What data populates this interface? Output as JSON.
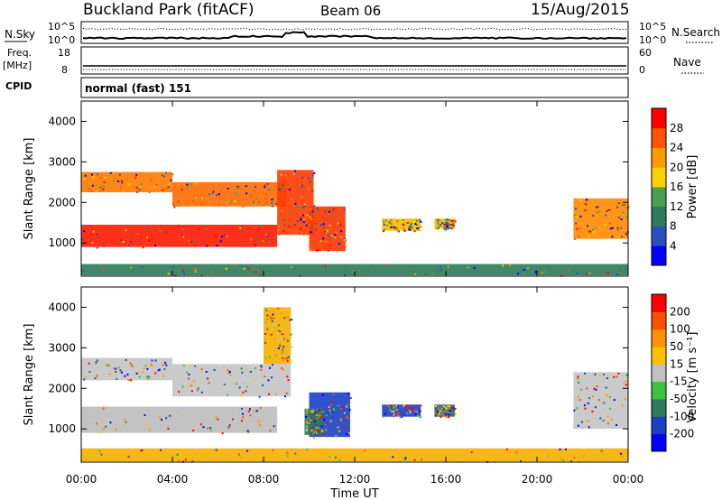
{
  "header": {
    "site": "Buckland Park (fitACF)",
    "beam": "Beam 06",
    "date": "15/Aug/2015"
  },
  "noise_panel": {
    "left_label": "N.Sky",
    "right_label": "N.Search",
    "left_ticks": [
      "10^5",
      "10^0"
    ],
    "right_ticks": [
      "10^5",
      "10^0"
    ]
  },
  "freq_panel": {
    "left_label_1": "Freq.",
    "left_label_2": "[MHz]",
    "left_label_3": "CPID",
    "right_label": "Nave",
    "left_ticks": [
      "18",
      "8"
    ],
    "right_ticks": [
      "60",
      "0"
    ],
    "cpid_text": "normal (fast) 151"
  },
  "time_axis": {
    "label": "Time UT",
    "ticks": [
      "00:00",
      "04:00",
      "08:00",
      "12:00",
      "16:00",
      "20:00",
      "00:00"
    ]
  },
  "chart_data": [
    {
      "type": "heatmap",
      "quantity": "Power",
      "ylabel": "Slant Range [km]",
      "ylim": [
        180,
        4500
      ],
      "yticks": [
        "1000",
        "2000",
        "3000",
        "4000"
      ],
      "xlim_hours": [
        0,
        24
      ],
      "colorbar_label": "Power [dB]",
      "colorbar_ticks": [
        "4",
        "8",
        "12",
        "16",
        "20",
        "24",
        "28"
      ],
      "colorbar_colors": [
        "#0000ff",
        "#2a4fc0",
        "#2e7a5a",
        "#4aa050",
        "#ffd000",
        "#ff9900",
        "#ff5500",
        "#ff0000"
      ],
      "regions": [
        {
          "t0": 0.0,
          "t1": 8.6,
          "r0": 900,
          "r1": 1450,
          "color": "#ff1a00"
        },
        {
          "t0": 0.0,
          "t1": 4.0,
          "r0": 2250,
          "r1": 2750,
          "color": "#ff7a00"
        },
        {
          "t0": 4.0,
          "t1": 9.0,
          "r0": 1900,
          "r1": 2500,
          "color": "#ff6a00"
        },
        {
          "t0": 8.6,
          "t1": 10.2,
          "r0": 1200,
          "r1": 2800,
          "color": "#ff3a00"
        },
        {
          "t0": 10.0,
          "t1": 11.6,
          "r0": 800,
          "r1": 1900,
          "color": "#ff3300"
        },
        {
          "t0": 13.2,
          "t1": 14.9,
          "r0": 1300,
          "r1": 1600,
          "color": "#f0c000"
        },
        {
          "t0": 15.5,
          "t1": 16.4,
          "r0": 1350,
          "r1": 1600,
          "color": "#f0c000"
        },
        {
          "t0": 21.6,
          "t1": 24.0,
          "r0": 1100,
          "r1": 2100,
          "color": "#ff8a00"
        },
        {
          "t0": 0.0,
          "t1": 24.0,
          "r0": 200,
          "r1": 480,
          "color": "#2e7a5a"
        }
      ]
    },
    {
      "type": "heatmap",
      "quantity": "Velocity",
      "ylabel": "Slant Range [km]",
      "ylim": [
        180,
        4500
      ],
      "yticks": [
        "1000",
        "2000",
        "3000",
        "4000"
      ],
      "xlim_hours": [
        0,
        24
      ],
      "colorbar_label": "Velocity [m s⁻¹]",
      "colorbar_ticks": [
        "200",
        "100",
        "50",
        "15",
        "-15",
        "-50",
        "-100",
        "-200"
      ],
      "colorbar_colors": [
        "#0000ff",
        "#1a40c8",
        "#2e7a5a",
        "#3cc040",
        "#c0c0c0",
        "#ffc000",
        "#ff9000",
        "#ff5000",
        "#ff0000"
      ],
      "regions": [
        {
          "t0": 0.0,
          "t1": 8.6,
          "r0": 900,
          "r1": 1550,
          "color": "#bdbdbd"
        },
        {
          "t0": 0.0,
          "t1": 4.0,
          "r0": 2200,
          "r1": 2750,
          "color": "#c4c4c4"
        },
        {
          "t0": 4.0,
          "t1": 9.2,
          "r0": 1800,
          "r1": 2600,
          "color": "#c4c4c4"
        },
        {
          "t0": 8.0,
          "t1": 9.2,
          "r0": 2600,
          "r1": 4000,
          "color": "#f5b000"
        },
        {
          "t0": 10.0,
          "t1": 11.8,
          "r0": 800,
          "r1": 1900,
          "color": "#1a40c8"
        },
        {
          "t0": 9.8,
          "t1": 10.6,
          "r0": 850,
          "r1": 1500,
          "color": "#2e7a5a"
        },
        {
          "t0": 13.2,
          "t1": 14.9,
          "r0": 1300,
          "r1": 1600,
          "color": "#1a40c8"
        },
        {
          "t0": 15.5,
          "t1": 16.4,
          "r0": 1300,
          "r1": 1600,
          "color": "#2e7a5a"
        },
        {
          "t0": 21.6,
          "t1": 24.0,
          "r0": 1000,
          "r1": 2400,
          "color": "#c4c4c4"
        },
        {
          "t0": 0.0,
          "t1": 24.0,
          "r0": 200,
          "r1": 520,
          "color": "#f5b000"
        }
      ]
    }
  ]
}
